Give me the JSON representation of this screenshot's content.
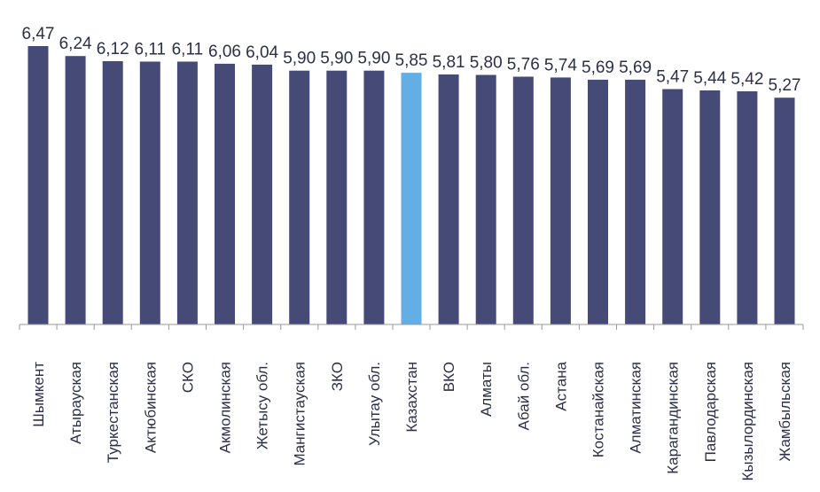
{
  "chart_data": {
    "type": "bar",
    "categories": [
      "Шымкент",
      "Атырауская",
      "Туркестанская",
      "Актюбинская",
      "СКО",
      "Акмолинская",
      "Жетысу обл.",
      "Мангистауская",
      "ЗКО",
      "Улытау обл.",
      "Казахстан",
      "ВКО",
      "Алматы",
      "Абай обл.",
      "Астана",
      "Костанайская",
      "Алматинская",
      "Карагандинская",
      "Павлодарская",
      "Кызылординская",
      "Жамбыльская"
    ],
    "values": [
      6.47,
      6.24,
      6.12,
      6.11,
      6.11,
      6.06,
      6.04,
      5.9,
      5.9,
      5.9,
      5.85,
      5.81,
      5.8,
      5.76,
      5.74,
      5.69,
      5.69,
      5.47,
      5.44,
      5.42,
      5.27
    ],
    "value_labels": [
      "6,47",
      "6,24",
      "6,12",
      "6,11",
      "6,11",
      "6,06",
      "6,04",
      "5,90",
      "5,90",
      "5,90",
      "5,85",
      "5,81",
      "5,80",
      "5,76",
      "5,74",
      "5,69",
      "5,69",
      "5,47",
      "5,44",
      "5,42",
      "5,27"
    ],
    "highlight_category": "Казахстан",
    "ylim": [
      0,
      6.47
    ],
    "grid": false,
    "legend": "none",
    "colors": {
      "bar": "#464a77",
      "highlight": "#64aee6",
      "axis": "#9a9a9a",
      "text": "#2c2f4a"
    }
  }
}
